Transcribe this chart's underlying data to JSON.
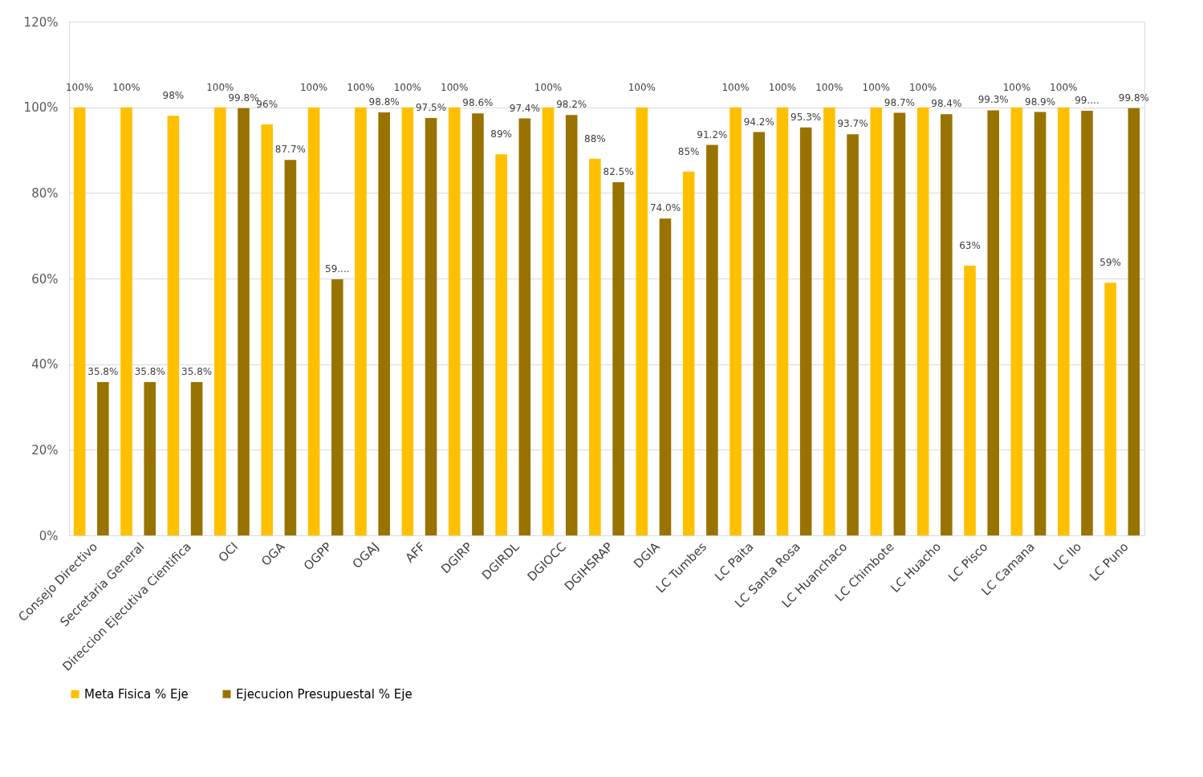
{
  "chart_data": {
    "type": "bar",
    "categories": [
      "Consejo Directivo",
      "Secretaria General",
      "Direccion Ejecutiva Cientifica",
      "OCI",
      "OGA",
      "OGPP",
      "OGAJ",
      "AFF",
      "DGIRP",
      "DGIRDL",
      "DGIOCC",
      "DGIHSRAP",
      "DGIA",
      "LC Tumbes",
      "LC Paita",
      "LC Santa Rosa",
      "LC Huanchaco",
      "LC Chimbote",
      "LC Huacho",
      "LC Pisco",
      "LC Camana",
      "LC Ilo",
      "LC Puno"
    ],
    "series": [
      {
        "name": "Meta Fisica % Eje",
        "color": "#ffc000",
        "values": [
          100,
          100,
          98,
          100,
          96,
          100,
          100,
          100,
          100,
          89,
          100,
          88,
          100,
          85,
          100,
          100,
          100,
          100,
          100,
          63,
          100,
          100,
          59
        ],
        "value_labels": [
          "100%",
          "100%",
          "98%",
          "100%",
          "96%",
          "100%",
          "100%",
          "100%",
          "100%",
          "89%",
          "100%",
          "88%",
          "100%",
          "85%",
          "100%",
          "100%",
          "100%",
          "100%",
          "100%",
          "63%",
          "100%",
          "100%",
          "59%"
        ]
      },
      {
        "name": "Ejecucion Presupuestal % Eje",
        "color": "#997300",
        "values": [
          35.8,
          35.8,
          35.8,
          99.8,
          87.7,
          59.8,
          98.8,
          97.5,
          98.6,
          97.4,
          98.2,
          82.5,
          74.0,
          91.2,
          94.2,
          95.3,
          93.7,
          98.7,
          98.4,
          99.3,
          98.9,
          99.2,
          99.8
        ],
        "value_labels": [
          "35.8%",
          "35.8%",
          "35.8%",
          "99.8%",
          "87.7%",
          "59....",
          "98.8%",
          "97.5%",
          "98.6%",
          "97.4%",
          "98.2%",
          "82.5%",
          "74.0%",
          "91.2%",
          "94.2%",
          "95.3%",
          "93.7%",
          "98.7%",
          "98.4%",
          "99.3%",
          "98.9%",
          "99....",
          "99.8%"
        ]
      }
    ],
    "ylim": [
      0,
      120
    ],
    "yticks": [
      {
        "value": 0,
        "label": "0%"
      },
      {
        "value": 20,
        "label": "20%"
      },
      {
        "value": 40,
        "label": "40%"
      },
      {
        "value": 60,
        "label": "60%"
      },
      {
        "value": 80,
        "label": "80%"
      },
      {
        "value": 100,
        "label": "100%"
      },
      {
        "value": 120,
        "label": "120%"
      }
    ],
    "grid": "y",
    "legend": "bottom"
  }
}
